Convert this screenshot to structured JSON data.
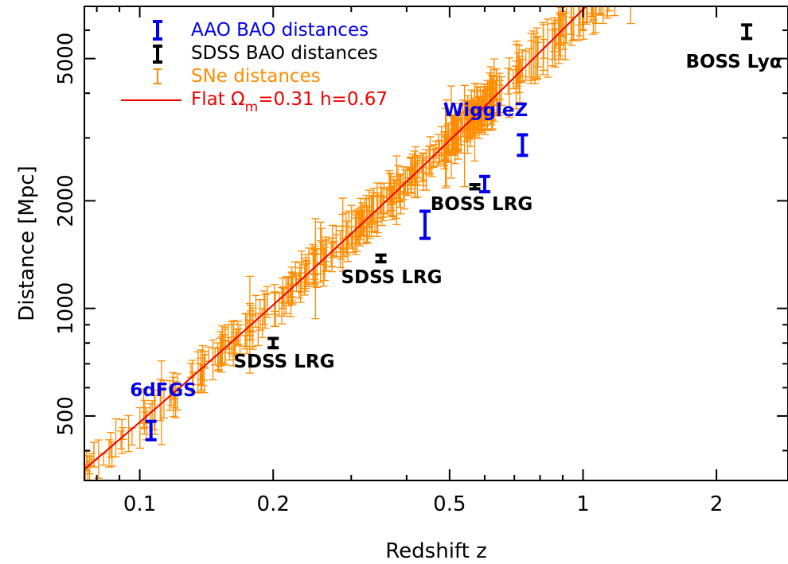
{
  "chart_data": {
    "type": "scatter",
    "xlabel": "Redshift z",
    "ylabel": "Distance [Mpc]",
    "xscale": "log",
    "yscale": "log",
    "xlim": [
      0.075,
      2.9
    ],
    "ylim": [
      330,
      7000
    ],
    "x_ticks": [
      {
        "value": 0.1,
        "label": "0.1"
      },
      {
        "value": 0.2,
        "label": "0.2"
      },
      {
        "value": 0.5,
        "label": "0.5"
      },
      {
        "value": 1,
        "label": "1"
      },
      {
        "value": 2,
        "label": "2"
      }
    ],
    "y_ticks": [
      {
        "value": 500,
        "label": "500"
      },
      {
        "value": 1000,
        "label": "1000"
      },
      {
        "value": 2000,
        "label": "2000"
      },
      {
        "value": 5000,
        "label": "5000"
      }
    ],
    "legend": {
      "placement": "top-left",
      "entries": [
        {
          "label": "AAO BAO distances",
          "color": "#0000ee"
        },
        {
          "label": "SDSS BAO distances",
          "color": "#000000"
        },
        {
          "label": "SNe distances",
          "color": "#ff8c00"
        },
        {
          "label_main": "Flat Ω",
          "label_sub": "m",
          "label_rest": "=0.31 h=0.67",
          "color": "#ee0000"
        }
      ]
    },
    "model_curve": {
      "name": "Flat Ωm=0.31 h=0.67",
      "color": "#ee0000",
      "x_range": [
        0.075,
        2.9
      ]
    },
    "bao_points": [
      {
        "survey": "AAO",
        "name": "6dFGS",
        "x": 0.106,
        "y": 456,
        "err": 27,
        "color": "#0000ee"
      },
      {
        "survey": "SDSS",
        "name": "SDSS LRG",
        "x": 0.2,
        "y": 800,
        "err": 24,
        "color": "#000000"
      },
      {
        "survey": "SDSS",
        "name": "SDSS LRG",
        "x": 0.35,
        "y": 1380,
        "err": 30,
        "color": "#000000"
      },
      {
        "survey": "AAO",
        "name": "WiggleZ",
        "x": 0.44,
        "y": 1720,
        "err": 150,
        "color": "#0000ee"
      },
      {
        "survey": "SDSS",
        "name": "BOSS LRG",
        "x": 0.57,
        "y": 2190,
        "err": 30,
        "color": "#000000"
      },
      {
        "survey": "AAO",
        "name": "WiggleZ",
        "x": 0.6,
        "y": 2230,
        "err": 110,
        "color": "#0000ee"
      },
      {
        "survey": "AAO",
        "name": "WiggleZ",
        "x": 0.73,
        "y": 2870,
        "err": 190,
        "color": "#0000ee"
      },
      {
        "survey": "SDSS",
        "name": "BOSS Lyα",
        "x": 2.34,
        "y": 5950,
        "err": 260,
        "color": "#000000"
      }
    ],
    "annotations": [
      {
        "text": "6dFGS",
        "color": "#0000ee"
      },
      {
        "text": "SDSS LRG",
        "color": "#000000"
      },
      {
        "text": "SDSS LRG",
        "color": "#000000"
      },
      {
        "text": "BOSS LRG",
        "color": "#000000"
      },
      {
        "text": "WiggleZ",
        "color": "#0000ee"
      },
      {
        "text": "BOSS Lyα",
        "color": "#000000"
      }
    ],
    "sne_series": {
      "name": "SNe distances",
      "color": "#ff8c00",
      "count": 520,
      "z_range": [
        0.075,
        1.4
      ],
      "typical_fractional_error": 0.09
    }
  }
}
